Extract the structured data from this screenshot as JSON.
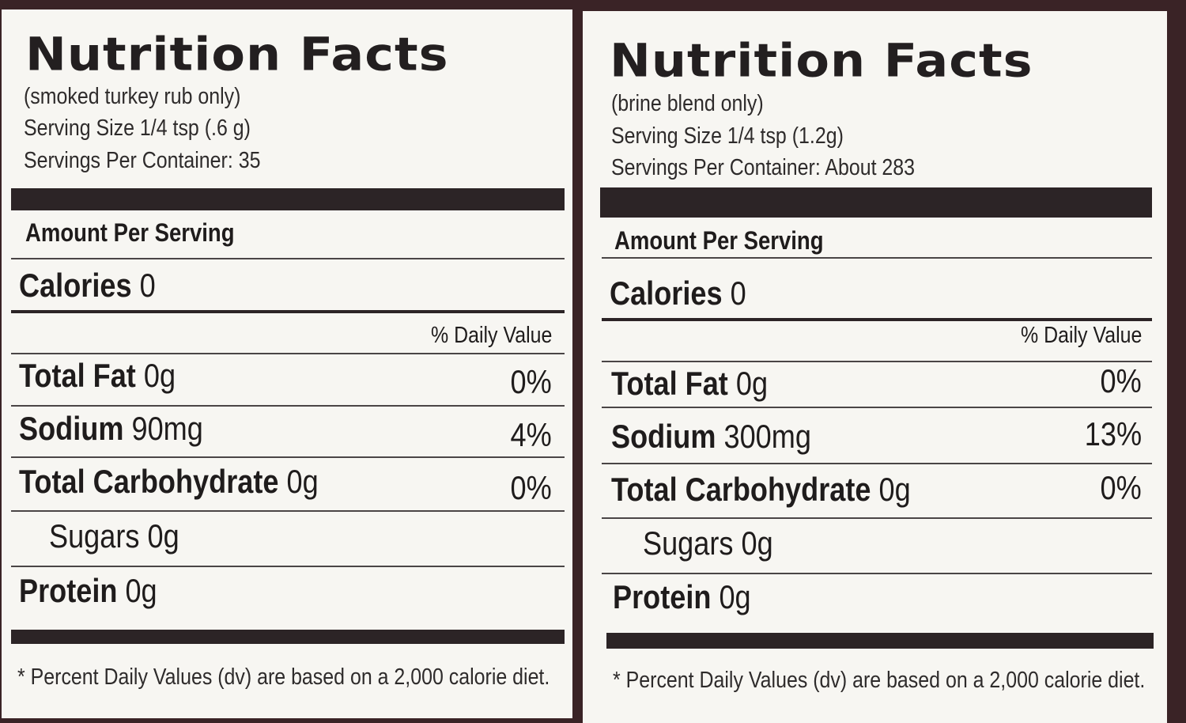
{
  "panels": [
    {
      "title": "Nutrition Facts",
      "subtitle": "(smoked turkey rub only)",
      "serving_size": "Serving Size 1/4 tsp (.6 g)",
      "servings_per_container": "Servings Per Container: 35",
      "amount_per_serving": "Amount Per Serving",
      "calories_label": "Calories",
      "calories_value": "0",
      "daily_value_header": "% Daily Value",
      "nutrients": [
        {
          "name": "Total Fat",
          "amount": "0g",
          "dv": "0%"
        },
        {
          "name": "Sodium",
          "amount": "90mg",
          "dv": "4%"
        },
        {
          "name": "Total Carbohydrate",
          "amount": "0g",
          "dv": "0%"
        },
        {
          "name": "Sugars",
          "amount": "0g",
          "dv": ""
        },
        {
          "name": "Protein",
          "amount": "0g",
          "dv": ""
        }
      ],
      "footnote": "* Percent Daily Values (dv) are based on a 2,000 calorie diet."
    },
    {
      "title": "Nutrition Facts",
      "subtitle": "(brine blend only)",
      "serving_size": "Serving Size 1/4 tsp (1.2g)",
      "servings_per_container": "Servings Per Container: About 283",
      "amount_per_serving": "Amount Per Serving",
      "calories_label": "Calories",
      "calories_value": "0",
      "daily_value_header": "% Daily Value",
      "nutrients": [
        {
          "name": "Total Fat",
          "amount": "0g",
          "dv": "0%"
        },
        {
          "name": "Sodium",
          "amount": "300mg",
          "dv": "13%"
        },
        {
          "name": "Total Carbohydrate",
          "amount": "0g",
          "dv": "0%"
        },
        {
          "name": "Sugars",
          "amount": "0g",
          "dv": ""
        },
        {
          "name": "Protein",
          "amount": "0g",
          "dv": ""
        }
      ],
      "footnote": "* Percent Daily Values (dv) are based on a 2,000 calorie diet."
    }
  ]
}
